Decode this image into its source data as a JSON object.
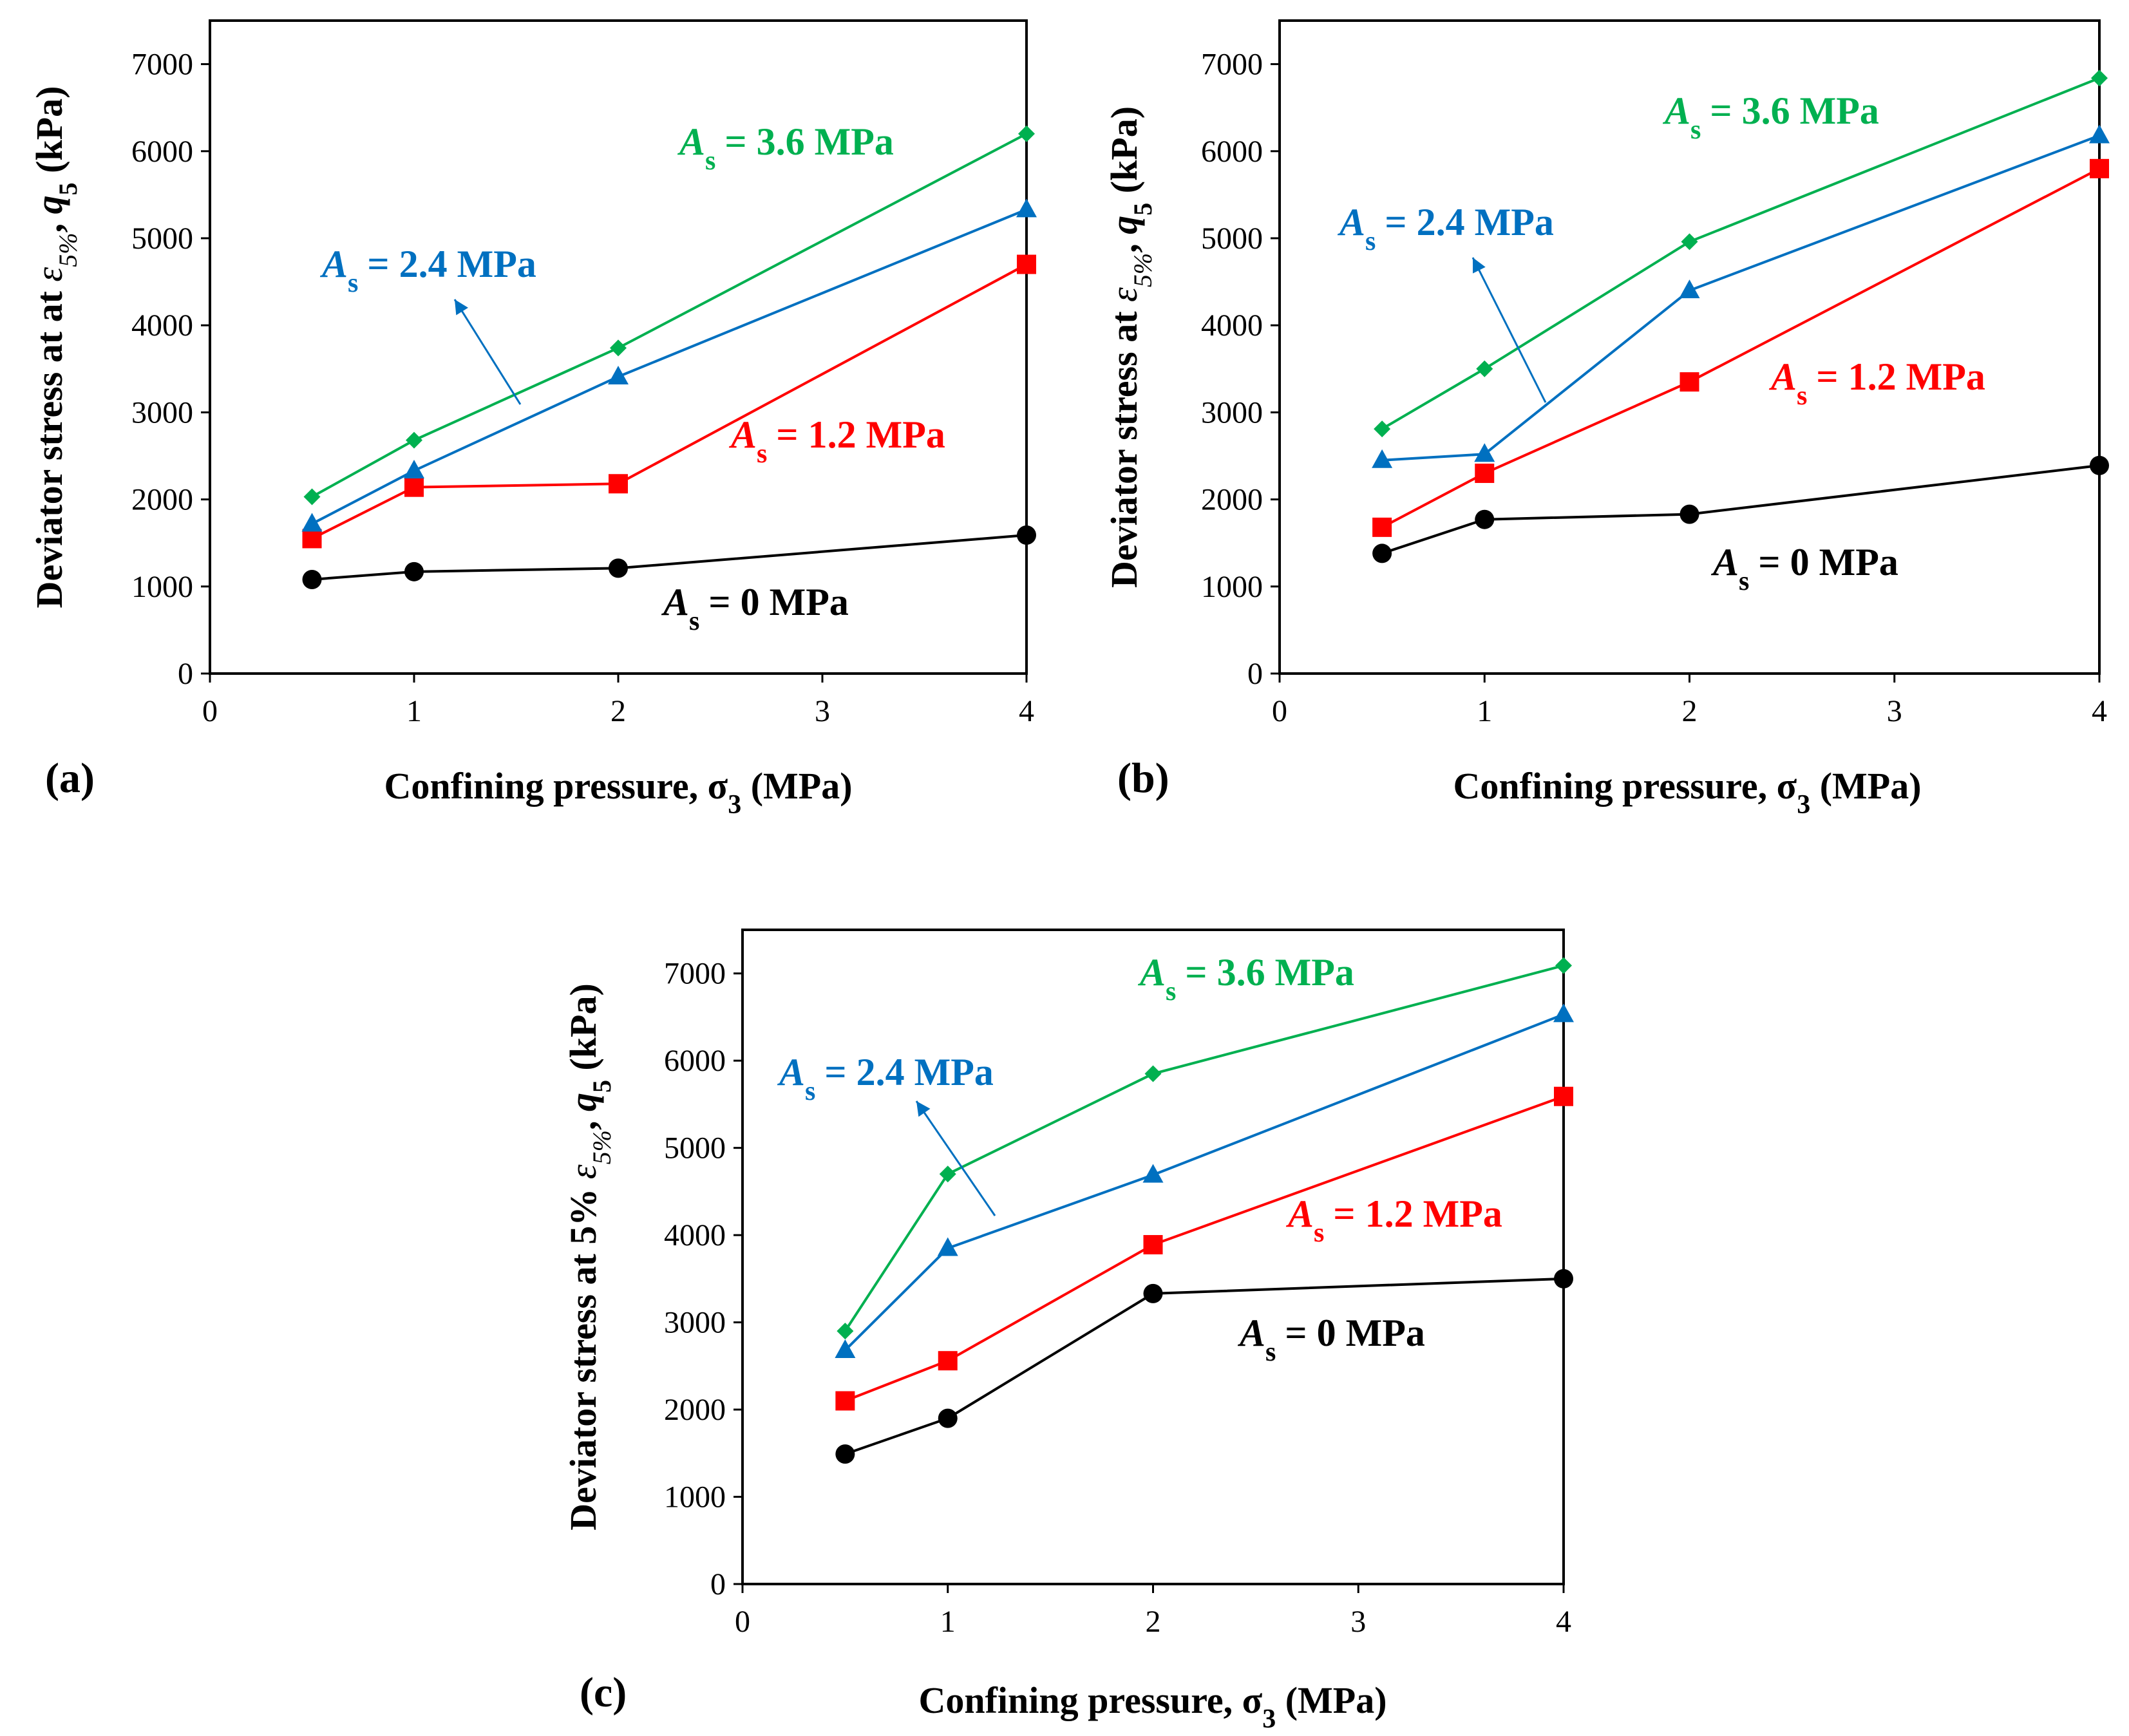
{
  "colors": {
    "axis": "#000000",
    "series": [
      "#000000",
      "#ff0000",
      "#0070c0",
      "#00b050"
    ]
  },
  "chart_data": [
    {
      "type": "line",
      "panel_label": "(a)",
      "xlabel": {
        "main": "Confining pressure, ",
        "sym": "σ",
        "sub": "3",
        "unit": " (MPa)"
      },
      "ylabel": {
        "pre": "Deviator stress at at ",
        "eps": "ε",
        "epssub": "5%",
        "sep": ", ",
        "q": "q",
        "qsub": "5",
        "unit": " (kPa)"
      },
      "xlim": [
        0,
        4
      ],
      "ylim": [
        0,
        7500
      ],
      "x_ticks": [
        0,
        1,
        2,
        3,
        4
      ],
      "y_ticks": [
        0,
        1000,
        2000,
        3000,
        4000,
        5000,
        6000,
        7000
      ],
      "x_scale": "0.5-1-2-4 plotted at equal-width segment 0-1 at 0.5 step, 1-4 linear",
      "series": [
        {
          "name": "As = 0 MPa",
          "label_pre": "A",
          "label_sub": "s",
          "label_post": "= 0 MPa",
          "marker": "circle",
          "x": [
            0.5,
            1,
            2,
            4
          ],
          "y": [
            1080,
            1170,
            1210,
            1590
          ]
        },
        {
          "name": "As = 1.2 MPa",
          "label_pre": "A",
          "label_sub": "s",
          "label_post": "= 1.2 MPa",
          "marker": "square",
          "x": [
            0.5,
            1,
            2,
            4
          ],
          "y": [
            1550,
            2140,
            2180,
            4700
          ]
        },
        {
          "name": "As = 2.4 MPa",
          "label_pre": "A",
          "label_sub": "s",
          "label_post": "= 2.4 MPa",
          "marker": "triangle",
          "x": [
            0.5,
            1,
            2,
            4
          ],
          "y": [
            1720,
            2330,
            3410,
            5330
          ]
        },
        {
          "name": "As = 3.6 MPa",
          "label_pre": "A",
          "label_sub": "s",
          "label_post": "= 3.6 MPa",
          "marker": "diamond",
          "x": [
            0.5,
            1,
            2,
            4
          ],
          "y": [
            2030,
            2680,
            3740,
            6200
          ]
        }
      ]
    },
    {
      "type": "line",
      "panel_label": "(b)",
      "xlabel": {
        "main": "Confining pressure, ",
        "sym": "σ",
        "sub": "3",
        "unit": " (MPa)"
      },
      "ylabel": {
        "pre": "Deviator stress at ",
        "eps": "ε",
        "epssub": "5%",
        "sep": ", ",
        "q": "q",
        "qsub": "5",
        "unit": " (kPa)"
      },
      "xlim": [
        0,
        4
      ],
      "ylim": [
        0,
        7500
      ],
      "x_ticks": [
        0,
        1,
        2,
        3,
        4
      ],
      "y_ticks": [
        0,
        1000,
        2000,
        3000,
        4000,
        5000,
        6000,
        7000
      ],
      "series": [
        {
          "name": "As = 0 MPa",
          "label_pre": "A",
          "label_sub": "s",
          "label_post": "= 0 MPa",
          "marker": "circle",
          "x": [
            0.5,
            1,
            2,
            4
          ],
          "y": [
            1380,
            1770,
            1830,
            2390
          ]
        },
        {
          "name": "As = 1.2 MPa",
          "label_pre": "A",
          "label_sub": "s",
          "label_post": "= 1.2 MPa",
          "marker": "square",
          "x": [
            0.5,
            1,
            2,
            4
          ],
          "y": [
            1680,
            2300,
            3350,
            5800
          ]
        },
        {
          "name": "As = 2.4 MPa",
          "label_pre": "A",
          "label_sub": "s",
          "label_post": "= 2.4 MPa",
          "marker": "triangle",
          "x": [
            0.5,
            1,
            2,
            4
          ],
          "y": [
            2450,
            2520,
            4400,
            6180
          ]
        },
        {
          "name": "As = 3.6 MPa",
          "label_pre": "A",
          "label_sub": "s",
          "label_post": "= 3.6 MPa",
          "marker": "diamond",
          "x": [
            0.5,
            1,
            2,
            4
          ],
          "y": [
            2810,
            3500,
            4960,
            6840
          ]
        }
      ]
    },
    {
      "type": "line",
      "panel_label": "(c)",
      "xlabel": {
        "main": "Confining pressure, ",
        "sym": "σ",
        "sub": "3",
        "unit": " (MPa)"
      },
      "ylabel": {
        "pre": "Deviator stress at 5% ",
        "eps": "ε",
        "epssub": "5%",
        "sep": ", ",
        "q": "q",
        "qsub": "5",
        "unit": " (kPa)"
      },
      "xlim": [
        0,
        4
      ],
      "ylim": [
        0,
        7500
      ],
      "x_ticks": [
        0,
        1,
        2,
        3,
        4
      ],
      "y_ticks": [
        0,
        1000,
        2000,
        3000,
        4000,
        5000,
        6000,
        7000
      ],
      "series": [
        {
          "name": "As = 0 MPa",
          "label_pre": "A",
          "label_sub": "s",
          "label_post": "= 0 MPa",
          "marker": "circle",
          "x": [
            0.5,
            1,
            2,
            4
          ],
          "y": [
            1490,
            1900,
            3330,
            3500
          ]
        },
        {
          "name": "As = 1.2 MPa",
          "label_pre": "A",
          "label_sub": "s",
          "label_post": "= 1.2 MPa",
          "marker": "square",
          "x": [
            0.5,
            1,
            2,
            4
          ],
          "y": [
            2100,
            2560,
            3890,
            5590
          ]
        },
        {
          "name": "As = 2.4 MPa",
          "label_pre": "A",
          "label_sub": "s",
          "label_post": "= 2.4 MPa",
          "marker": "triangle",
          "x": [
            0.5,
            1,
            2,
            4
          ],
          "y": [
            2680,
            3850,
            4690,
            6530
          ]
        },
        {
          "name": "As = 3.6 MPa",
          "label_pre": "A",
          "label_sub": "s",
          "label_post": "= 3.6 MPa",
          "marker": "diamond",
          "x": [
            0.5,
            1,
            2,
            4
          ],
          "y": [
            2900,
            4700,
            5850,
            7090
          ]
        }
      ]
    }
  ]
}
